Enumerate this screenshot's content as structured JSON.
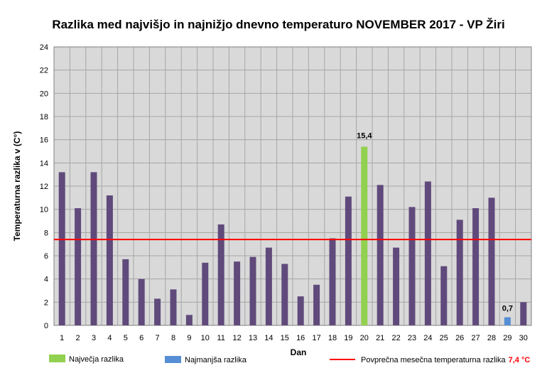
{
  "chart_data": {
    "type": "bar",
    "title": "Razlika med najvišjo in najnižjo dnevno temperaturo NOVEMBER 2017 - VP Žiri",
    "xlabel": "Dan",
    "ylabel": "Temperaturna razlika v (C°)",
    "ylim": [
      0,
      24
    ],
    "yticks": [
      0,
      2,
      4,
      6,
      8,
      10,
      12,
      14,
      16,
      18,
      20,
      22,
      24
    ],
    "grid": true,
    "categories": [
      "1",
      "2",
      "3",
      "4",
      "5",
      "6",
      "7",
      "8",
      "9",
      "10",
      "11",
      "12",
      "13",
      "14",
      "15",
      "16",
      "17",
      "18",
      "19",
      "20",
      "21",
      "22",
      "23",
      "24",
      "25",
      "26",
      "27",
      "28",
      "29",
      "30"
    ],
    "values": [
      13.2,
      10.1,
      13.2,
      11.2,
      5.7,
      4.0,
      2.3,
      3.1,
      0.9,
      5.4,
      8.7,
      5.5,
      5.9,
      6.7,
      5.3,
      2.5,
      3.5,
      7.5,
      11.1,
      15.4,
      12.1,
      6.7,
      10.2,
      12.4,
      5.1,
      9.1,
      10.1,
      11.0,
      0.7,
      2.0
    ],
    "max_day": "20",
    "min_day": "29",
    "max_label": "15,4",
    "min_label": "0,7",
    "average": 7.4,
    "colors": {
      "default": "#604a7b",
      "max": "#92d050",
      "min": "#558ed5",
      "average_line": "#ff0000",
      "grid": "#a6a6a6",
      "plot_bg": "#d9d9d9"
    },
    "legend": {
      "placement": "bottom",
      "max_label": "Največja razlika",
      "min_label": "Najmanjša razlika",
      "average_label": "Povprečna mesečna temperaturna razlika",
      "average_value_label": "7,4 °C"
    }
  }
}
